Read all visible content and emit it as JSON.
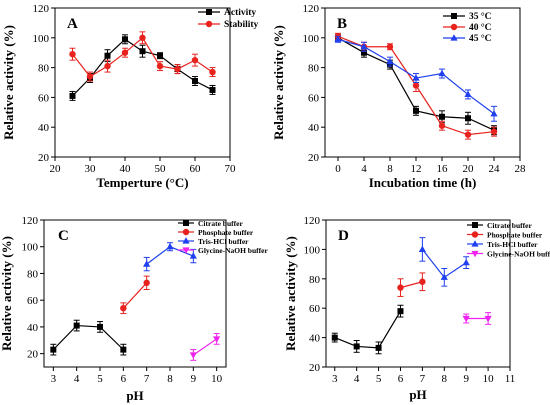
{
  "chart_data": [
    {
      "panel": "A",
      "type": "line",
      "xlabel": "Temperture (°C)",
      "ylabel": "Relative activity (%)",
      "xlim": [
        20,
        70
      ],
      "ylim": [
        20,
        120
      ],
      "xticks": [
        20,
        30,
        40,
        50,
        60,
        70
      ],
      "yticks": [
        20,
        40,
        60,
        80,
        100,
        120
      ],
      "legend_position": "top-right",
      "series": [
        {
          "name": "Activity",
          "color": "#000000",
          "marker": "square",
          "x": [
            25,
            30,
            35,
            40,
            45,
            50,
            55,
            60,
            65
          ],
          "y": [
            61,
            73,
            88,
            99,
            91,
            88,
            79,
            71,
            65
          ],
          "err": [
            3,
            3,
            4,
            3,
            4,
            2,
            3,
            3,
            3
          ]
        },
        {
          "name": "Stability",
          "color": "#e8231e",
          "marker": "circle",
          "x": [
            25,
            30,
            35,
            40,
            45,
            50,
            55,
            60,
            65
          ],
          "y": [
            89,
            74,
            81,
            90,
            100,
            81,
            79,
            85,
            77
          ],
          "err": [
            4,
            3,
            4,
            3,
            4,
            3,
            3,
            4,
            3
          ]
        }
      ]
    },
    {
      "panel": "B",
      "type": "line",
      "xlabel": "Incubation time (h)",
      "ylabel": "Relative activity (%)",
      "xlim": [
        -2,
        28
      ],
      "ylim": [
        20,
        120
      ],
      "xticks": [
        0,
        4,
        8,
        12,
        16,
        20,
        24,
        28
      ],
      "yticks": [
        20,
        40,
        60,
        80,
        100,
        120
      ],
      "legend_position": "top-right",
      "series": [
        {
          "name": "35 °C",
          "color": "#000000",
          "marker": "square",
          "x": [
            0,
            4,
            8,
            12,
            16,
            20,
            24
          ],
          "y": [
            100,
            90,
            82,
            51,
            47,
            46,
            38
          ],
          "err": [
            2,
            3,
            3,
            3,
            4,
            4,
            3
          ]
        },
        {
          "name": "40 °C",
          "color": "#e8231e",
          "marker": "circle",
          "x": [
            0,
            4,
            8,
            12,
            16,
            20,
            24
          ],
          "y": [
            101,
            94,
            94,
            68,
            41,
            35,
            37
          ],
          "err": [
            2,
            3,
            2,
            4,
            3,
            3,
            3
          ]
        },
        {
          "name": "45 °C",
          "color": "#1f3ff0",
          "marker": "triangle",
          "x": [
            0,
            4,
            8,
            12,
            16,
            20,
            24
          ],
          "y": [
            99,
            94,
            84,
            73,
            76,
            62,
            49
          ],
          "err": [
            2,
            3,
            3,
            3,
            3,
            3,
            5
          ]
        }
      ]
    },
    {
      "panel": "C",
      "type": "line",
      "xlabel": "pH",
      "ylabel": "Relative activity (%)",
      "xlim": [
        2.6,
        10.4
      ],
      "ylim": [
        10,
        120
      ],
      "xticks": [
        3,
        4,
        5,
        6,
        7,
        8,
        9,
        10
      ],
      "yticks": [
        20,
        40,
        60,
        80,
        100,
        120
      ],
      "legend_position": "top-right",
      "series": [
        {
          "name": "Citrate buffer",
          "color": "#000000",
          "marker": "square",
          "x": [
            3,
            4,
            5,
            6
          ],
          "y": [
            23,
            41,
            40,
            23
          ],
          "err": [
            4,
            4,
            4,
            4
          ]
        },
        {
          "name": "Phosphate buffer",
          "color": "#e8231e",
          "marker": "circle",
          "x": [
            6,
            7
          ],
          "y": [
            54,
            73
          ],
          "err": [
            4,
            5
          ]
        },
        {
          "name": "Tris-HCl buffer",
          "color": "#1f3ff0",
          "marker": "triangle",
          "x": [
            7,
            8,
            9
          ],
          "y": [
            87,
            100,
            93
          ],
          "err": [
            5,
            3,
            5
          ]
        },
        {
          "name": "Glycine-NaOH buffer",
          "color": "#ee22ee",
          "marker": "triangle-down",
          "x": [
            9,
            10
          ],
          "y": [
            19,
            31
          ],
          "err": [
            4,
            4
          ]
        }
      ]
    },
    {
      "panel": "D",
      "type": "line",
      "xlabel": "pH",
      "ylabel": "Relative activity (%)",
      "xlim": [
        2.6,
        11
      ],
      "ylim": [
        20,
        120
      ],
      "xticks": [
        3,
        4,
        5,
        6,
        7,
        8,
        9,
        10,
        11
      ],
      "yticks": [
        20,
        40,
        60,
        80,
        100,
        120
      ],
      "legend_position": "top-right",
      "series": [
        {
          "name": "Citrate buffer",
          "color": "#000000",
          "marker": "square",
          "x": [
            3,
            4,
            5,
            6
          ],
          "y": [
            40,
            34,
            33,
            58
          ],
          "err": [
            3,
            4,
            4,
            4
          ]
        },
        {
          "name": "Phosphate buffer",
          "color": "#e8231e",
          "marker": "circle",
          "x": [
            6,
            7
          ],
          "y": [
            74,
            78
          ],
          "err": [
            6,
            6
          ]
        },
        {
          "name": "Tris-HCl buffer",
          "color": "#1f3ff0",
          "marker": "triangle",
          "x": [
            7,
            8,
            9
          ],
          "y": [
            100,
            81,
            91
          ],
          "err": [
            8,
            6,
            4
          ]
        },
        {
          "name": "Glycine-NaOH buffer",
          "color": "#ee22ee",
          "marker": "triangle-down",
          "x": [
            9,
            10
          ],
          "y": [
            53,
            53
          ],
          "err": [
            3,
            4
          ]
        }
      ]
    }
  ]
}
